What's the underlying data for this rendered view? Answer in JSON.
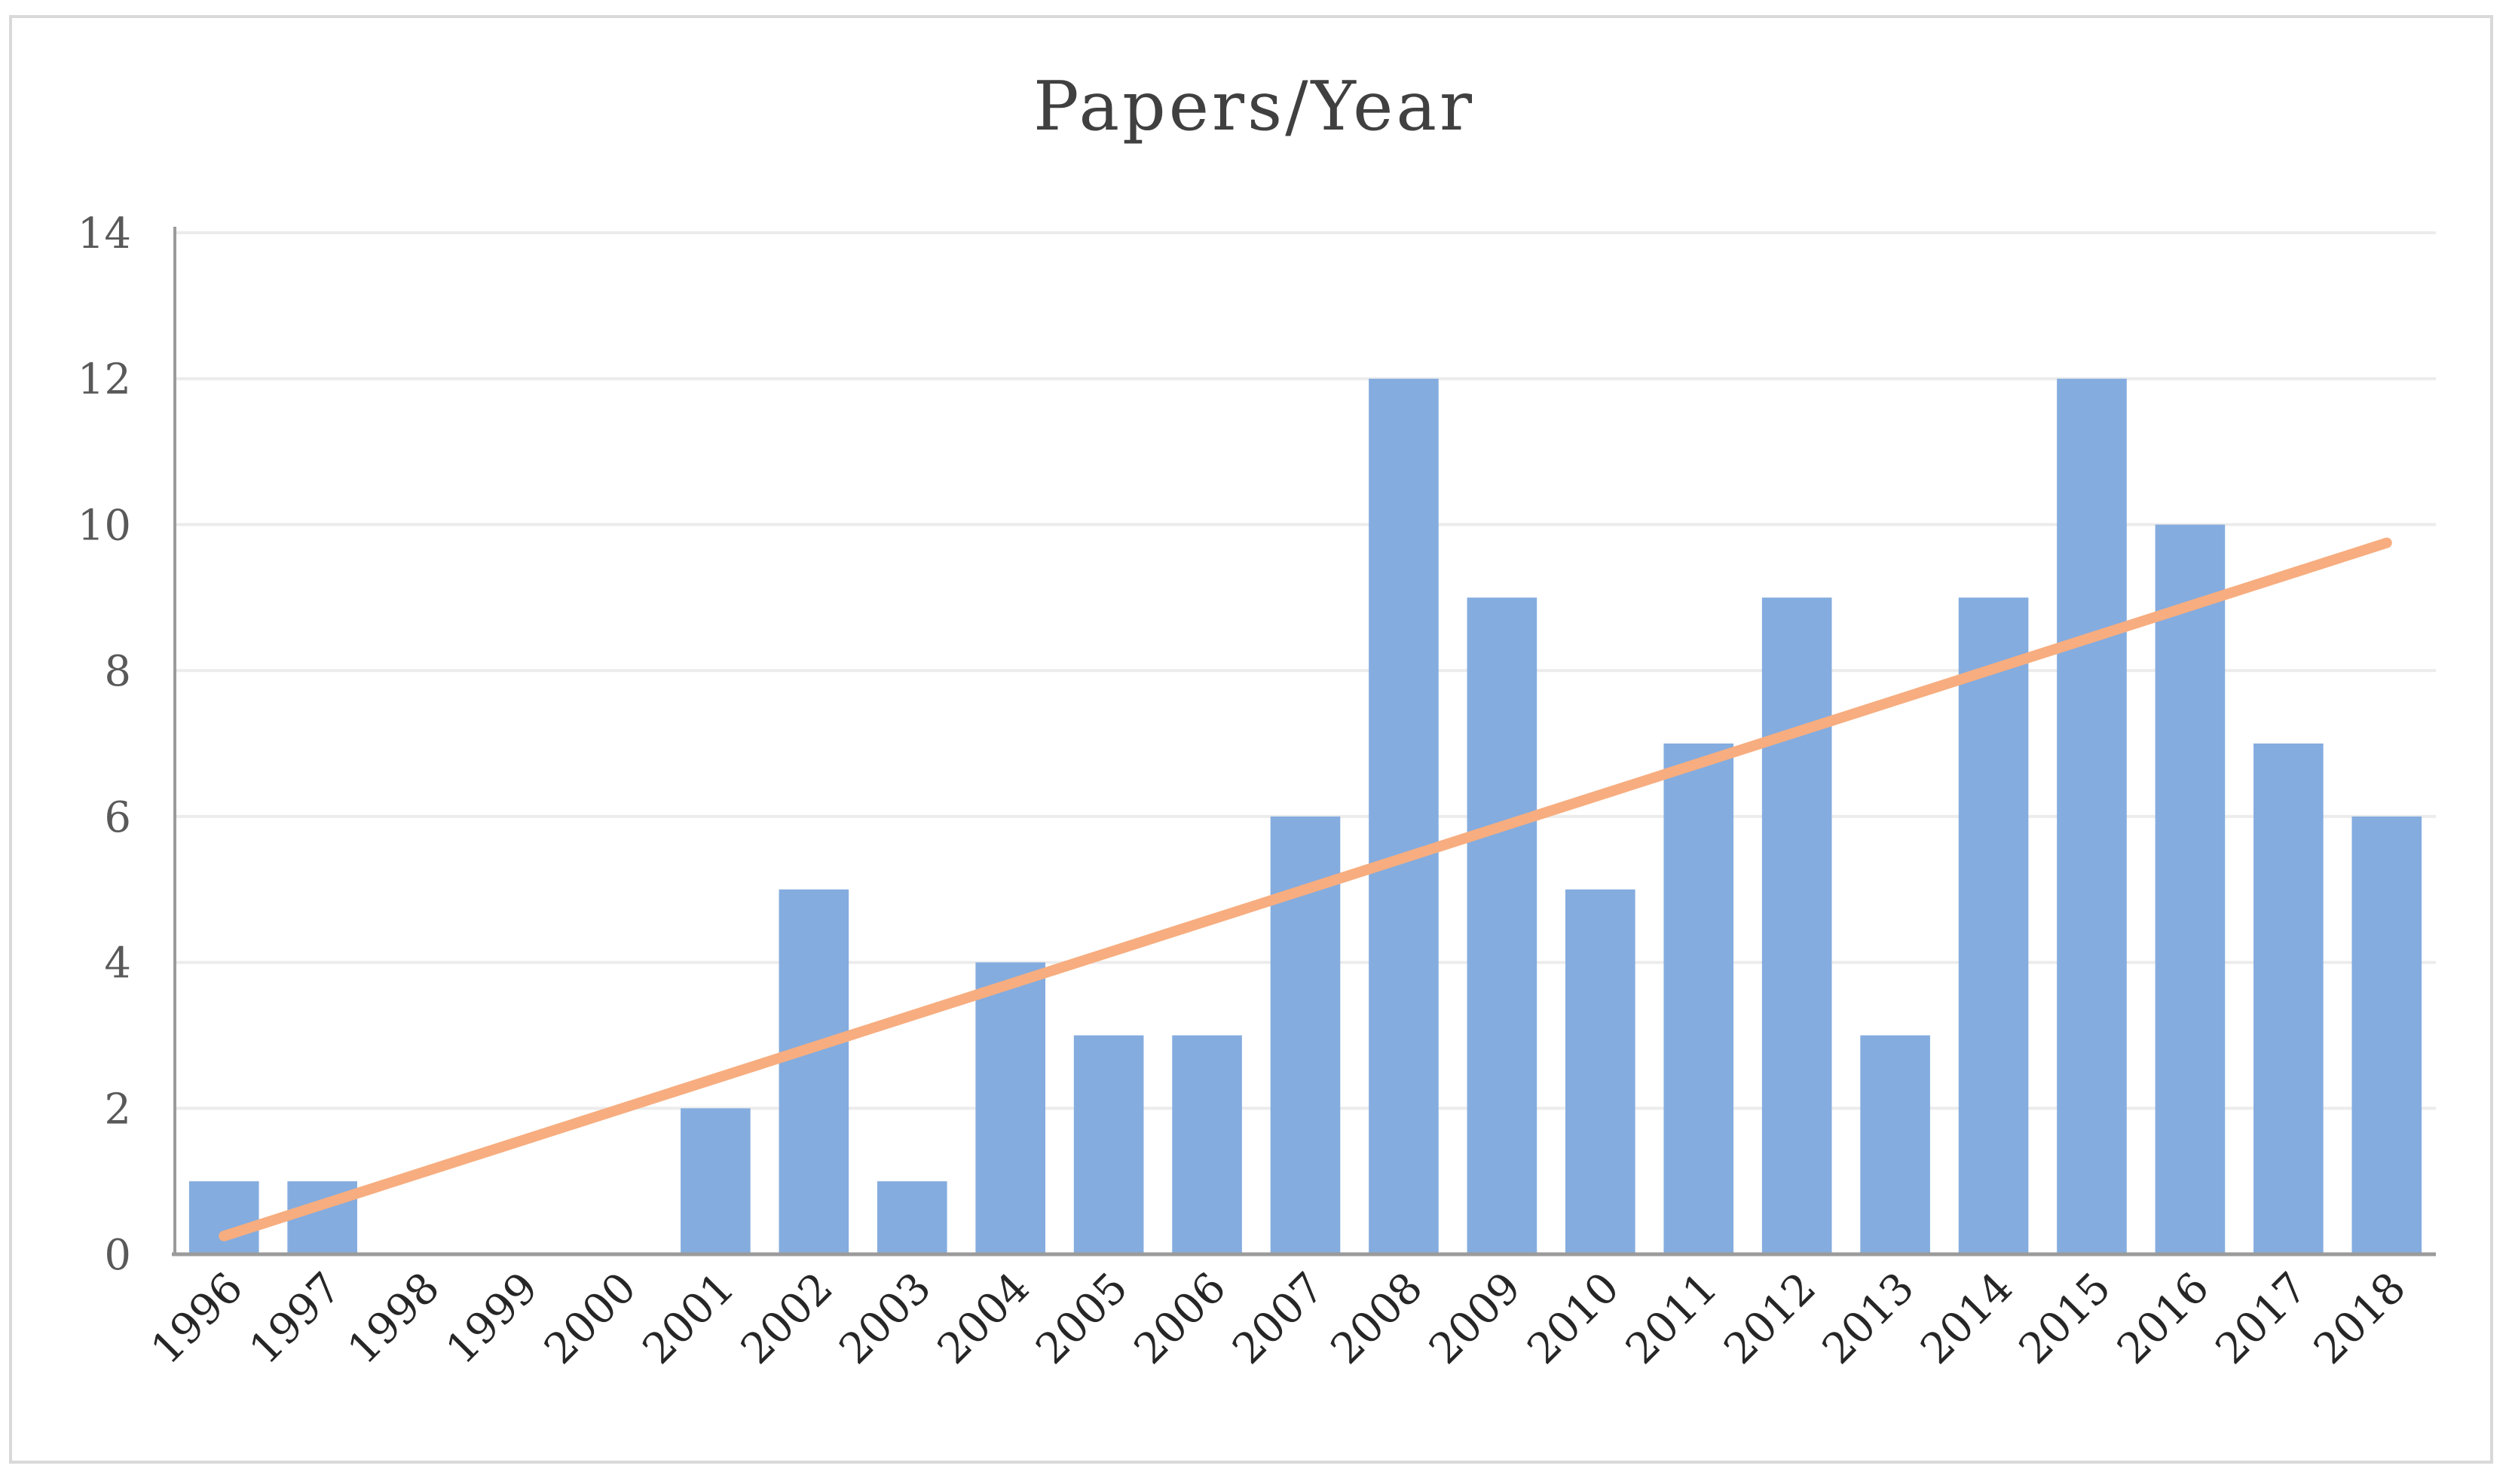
{
  "chart_data": {
    "type": "bar",
    "title": "Papers/Year",
    "xlabel": "",
    "ylabel": "",
    "categories": [
      "1996",
      "1997",
      "1998",
      "1999",
      "2000",
      "2001",
      "2002",
      "2003",
      "2004",
      "2005",
      "2006",
      "2007",
      "2008",
      "2009",
      "2010",
      "2011",
      "2012",
      "2013",
      "2014",
      "2015",
      "2016",
      "2017",
      "2018"
    ],
    "values": [
      1,
      1,
      0,
      0,
      0,
      2,
      5,
      1,
      4,
      3,
      3,
      6,
      12,
      9,
      5,
      7,
      9,
      3,
      9,
      12,
      10,
      7,
      6
    ],
    "trendline": {
      "type": "linear",
      "start": 0.25,
      "end": 9.75
    },
    "ylim": [
      0,
      14
    ],
    "yticks": [
      "0",
      "2",
      "4",
      "6",
      "8",
      "10",
      "12",
      "14"
    ],
    "grid": true,
    "legend": "none",
    "colors": {
      "bar": "#84acdf",
      "trendline": "#f7ad7f",
      "gridline": "#ececec",
      "axis": "#9b9b9b",
      "frame": "#d9d9d9"
    }
  }
}
